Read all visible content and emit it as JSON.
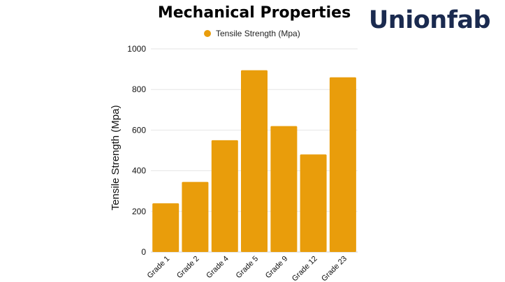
{
  "brand": {
    "logo_text": "Unionfab",
    "logo_color": "#1a2a4f"
  },
  "chart_data": {
    "type": "bar",
    "title": "Mechanical Properties",
    "xlabel": "",
    "ylabel": "Tensile Strength (Mpa)",
    "ylim": [
      0,
      1000
    ],
    "yticks": [
      "0",
      "200",
      "400",
      "600",
      "800",
      "1000"
    ],
    "grid": true,
    "legend_position": "top-center",
    "categories": [
      "Grade 1",
      "Grade 2",
      "Grade 4",
      "Grade 5",
      "Grade 9",
      "Grade 12",
      "Grade 23"
    ],
    "series": [
      {
        "name": "Tensile Strength (Mpa)",
        "color": "#e99d0b",
        "values": [
          240,
          345,
          550,
          895,
          620,
          480,
          860
        ]
      }
    ]
  }
}
